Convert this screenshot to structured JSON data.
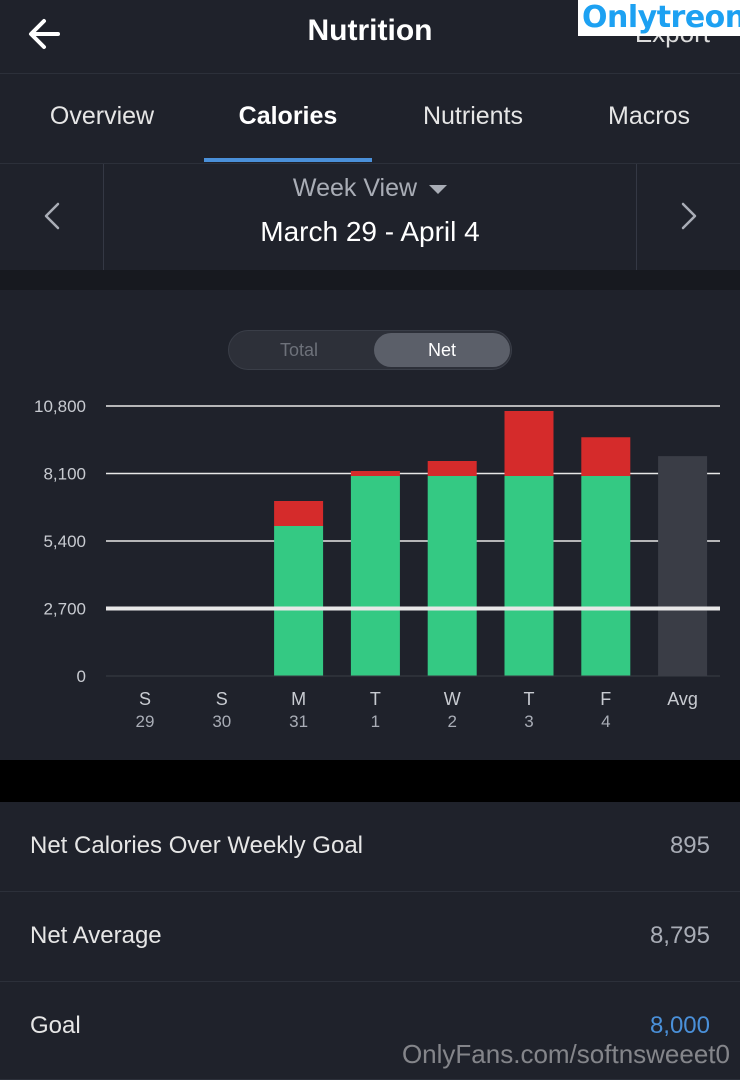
{
  "header": {
    "title": "Nutrition",
    "export_label": "Export",
    "brand": "Onlytreon",
    "back_icon": "arrow-left-icon"
  },
  "tabs": [
    {
      "label": "Overview",
      "active": false
    },
    {
      "label": "Calories",
      "active": true
    },
    {
      "label": "Nutrients",
      "active": false
    },
    {
      "label": "Macros",
      "active": false
    }
  ],
  "week_nav": {
    "view_label": "Week View",
    "range": "March 29 - April 4",
    "prev_icon": "chevron-left-icon",
    "next_icon": "chevron-right-icon"
  },
  "toggle": {
    "total_label": "Total",
    "net_label": "Net",
    "selected": "Net"
  },
  "chart_data": {
    "type": "bar",
    "stacked": true,
    "y_ticks": [
      "10,800",
      "8,100",
      "5,400",
      "2,700",
      "0"
    ],
    "ylim": [
      0,
      10800
    ],
    "goal_line": 2700,
    "categories": [
      {
        "day": "S",
        "date": "29"
      },
      {
        "day": "S",
        "date": "30"
      },
      {
        "day": "M",
        "date": "31"
      },
      {
        "day": "T",
        "date": "1"
      },
      {
        "day": "W",
        "date": "2"
      },
      {
        "day": "T",
        "date": "3"
      },
      {
        "day": "F",
        "date": "4"
      },
      {
        "day": "Avg",
        "date": ""
      }
    ],
    "series": [
      {
        "values": [
          0,
          0,
          6000,
          8000,
          8000,
          8000,
          8000,
          0
        ],
        "color": "#34c983"
      },
      {
        "values": [
          0,
          0,
          1000,
          200,
          600,
          2600,
          1550,
          0
        ],
        "color": "#d52b2b"
      },
      {
        "values": [
          0,
          0,
          0,
          0,
          0,
          0,
          0,
          8795
        ],
        "color": "#3a3d46"
      }
    ],
    "grid": true
  },
  "stats": [
    {
      "label": "Net Calories Over Weekly Goal",
      "value": "895",
      "highlight": false
    },
    {
      "label": "Net Average",
      "value": "8,795",
      "highlight": false
    },
    {
      "label": "Goal",
      "value": "8,000",
      "highlight": true
    }
  ],
  "watermark": "OnlyFans.com/softnsweeet0"
}
